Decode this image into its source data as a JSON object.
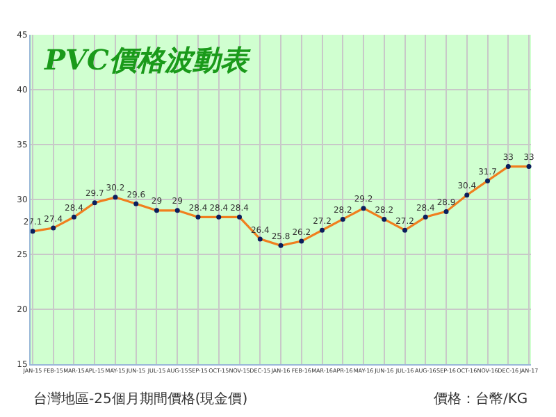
{
  "chart_data": {
    "type": "line",
    "title": "PVC價格波動表",
    "categories": [
      "JAN-15",
      "FEB-15",
      "MAR-15",
      "APL-15",
      "MAY-15",
      "JUN-15",
      "JUL-15",
      "AUG-15",
      "SEP-15",
      "OCT-15",
      "NOV-15",
      "DEC-15",
      "JAN-16",
      "FEB-16",
      "MAR-16",
      "APR-16",
      "MAY-16",
      "JUN-16",
      "JUL-16",
      "AUG-16",
      "SEP-16",
      "OCT-16",
      "NOV-16",
      "DEC-16",
      "JAN-17"
    ],
    "series": [
      {
        "color": "#f07f1e",
        "values": [
          27.1,
          27.4,
          28.4,
          29.7,
          30.2,
          29.6,
          29,
          29,
          28.4,
          28.4,
          28.4,
          26.4,
          25.8,
          26.2,
          27.2,
          28.2,
          29.2,
          28.2,
          27.2,
          28.4,
          28.9,
          30.4,
          31.7,
          33,
          33
        ]
      }
    ],
    "ylim": [
      15,
      45
    ],
    "yticks": [
      15,
      20,
      25,
      30,
      35,
      40,
      45
    ],
    "grid": true,
    "marker": "circle",
    "line_style": "solid",
    "data_labels": true,
    "annotations": [
      "台灣地區-25個月期間價格(現金價)",
      "價格：台幣/KG"
    ]
  }
}
